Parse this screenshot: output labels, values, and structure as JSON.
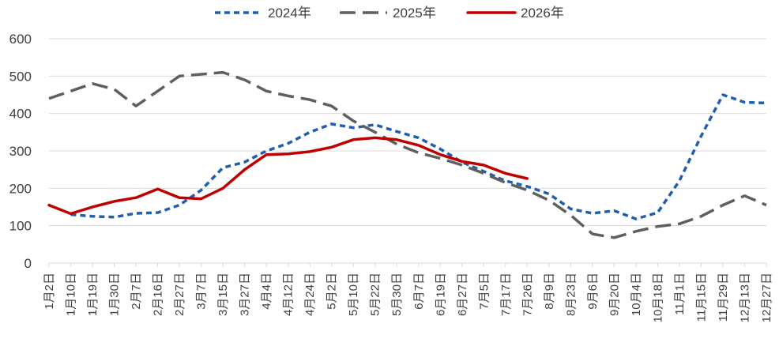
{
  "chart_data": {
    "type": "line",
    "title": "",
    "xlabel": "",
    "ylabel": "",
    "ylim": [
      0,
      600
    ],
    "yticks": [
      0,
      100,
      200,
      300,
      400,
      500,
      600
    ],
    "grid": true,
    "legend_position": "top-center",
    "categories": [
      "1月2日",
      "1月10日",
      "1月19日",
      "1月30日",
      "2月7日",
      "2月16日",
      "2月27日",
      "3月7日",
      "3月15日",
      "3月27日",
      "4月4日",
      "4月12日",
      "4月24日",
      "5月2日",
      "5月10日",
      "5月22日",
      "5月30日",
      "6月7日",
      "6月19日",
      "6月27日",
      "7月5日",
      "7月17日",
      "7月26日",
      "8月9日",
      "8月23日",
      "9月6日",
      "9月20日",
      "10月4日",
      "10月18日",
      "11月1日",
      "11月15日",
      "11月29日",
      "12月13日",
      "12月27日"
    ],
    "series": [
      {
        "name": "2024年",
        "color": "#1F5FAD",
        "style": "dotted",
        "values": [
          null,
          130,
          125,
          123,
          133,
          135,
          155,
          195,
          255,
          270,
          300,
          320,
          350,
          372,
          362,
          370,
          352,
          335,
          305,
          270,
          245,
          220,
          205,
          185,
          145,
          133,
          140,
          118,
          135,
          220,
          340,
          450,
          430,
          428
        ]
      },
      {
        "name": "2025年",
        "color": "#5F5F5F",
        "style": "dashed",
        "values": [
          440,
          460,
          480,
          465,
          420,
          460,
          500,
          505,
          510,
          490,
          460,
          447,
          437,
          420,
          380,
          350,
          318,
          295,
          280,
          262,
          240,
          215,
          195,
          168,
          128,
          78,
          68,
          85,
          98,
          105,
          125,
          155,
          180,
          155
        ]
      },
      {
        "name": "2026年",
        "color": "#C00000",
        "style": "solid",
        "values": [
          155,
          132,
          150,
          165,
          175,
          198,
          175,
          172,
          200,
          250,
          290,
          292,
          298,
          310,
          330,
          335,
          330,
          315,
          290,
          272,
          262,
          240,
          226,
          null,
          null,
          null,
          null,
          null,
          null,
          null,
          null,
          null,
          null,
          null
        ]
      }
    ]
  }
}
